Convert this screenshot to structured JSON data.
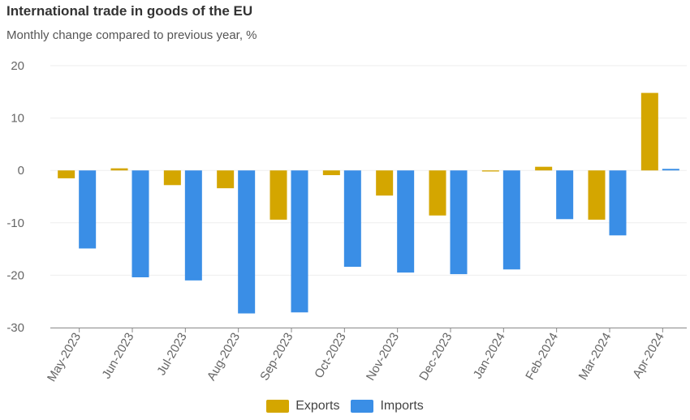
{
  "title": "International trade in goods of the EU",
  "subtitle": "Monthly change compared to previous year, %",
  "colors": {
    "exports": "#d4a600",
    "imports": "#3a8ee6",
    "grid": "#eeeeee",
    "axis": "#888888"
  },
  "chart_data": {
    "type": "bar",
    "title": "International trade in goods of the EU",
    "subtitle": "Monthly change compared to previous year, %",
    "categories": [
      "May-2023",
      "Jun-2023",
      "Jul-2023",
      "Aug-2023",
      "Sep-2023",
      "Oct-2023",
      "Nov-2023",
      "Dec-2023",
      "Jan-2024",
      "Feb-2024",
      "Mar-2024",
      "Apr-2024"
    ],
    "series": [
      {
        "name": "Exports",
        "color": "#d4a600",
        "values": [
          -1.5,
          0.4,
          -2.8,
          -3.4,
          -9.4,
          -0.9,
          -4.8,
          -8.6,
          -0.2,
          0.7,
          -9.4,
          14.8
        ]
      },
      {
        "name": "Imports",
        "color": "#3a8ee6",
        "values": [
          -14.9,
          -20.4,
          -21.0,
          -27.3,
          -27.1,
          -18.4,
          -19.5,
          -19.8,
          -18.9,
          -9.3,
          -12.4,
          0.3
        ]
      }
    ],
    "ylim": [
      -30,
      20
    ],
    "yticks": [
      20,
      10,
      0,
      -10,
      -20,
      -30
    ],
    "grid": true,
    "legend": "bottom"
  }
}
